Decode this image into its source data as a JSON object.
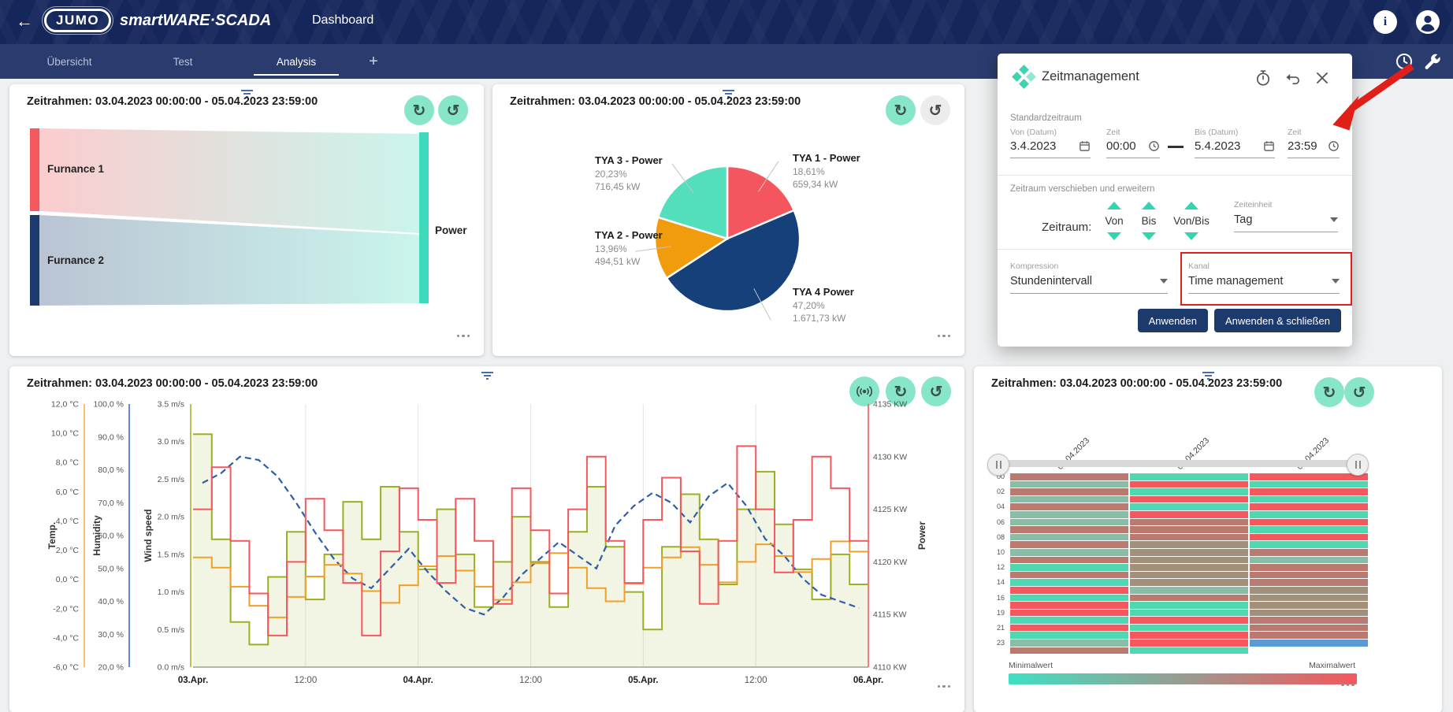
{
  "app_bar": {
    "logo_text": "JUMO",
    "brand": "smartWARE·SCADA",
    "page_title": "Dashboard",
    "accent_color": "#15265b"
  },
  "tab_bar": {
    "tabs": [
      {
        "label": "Übersicht",
        "active": false
      },
      {
        "label": "Test",
        "active": false
      },
      {
        "label": "Analysis",
        "active": true
      }
    ],
    "add_tab_label": "+"
  },
  "timeframe": "Zeitrahmen: 03.04.2023 00:00:00 - 05.04.2023 23:59:00",
  "dialog": {
    "title": "Zeitmanagement",
    "sections": {
      "standard": "Standardzeitraum",
      "shift": "Zeitraum verschieben und erweitern"
    },
    "fields": [
      {
        "label": "Von (Datum)",
        "value": "3.4.2023",
        "icon": "calendar"
      },
      {
        "label": "Zeit",
        "value": "00:00",
        "icon": "clock"
      },
      {
        "label": "Bis (Datum)",
        "value": "5.4.2023",
        "icon": "calendar"
      },
      {
        "label": "Zeit",
        "value": "23:59",
        "icon": "clock"
      }
    ],
    "zeitraum_label": "Zeitraum:",
    "steppers": [
      {
        "label": "Von"
      },
      {
        "label": "Bis"
      },
      {
        "label": "Von/Bis"
      }
    ],
    "zeiteinheit": {
      "label": "Zeiteinheit",
      "value": "Tag"
    },
    "kompression": {
      "label": "Kompression",
      "value": "Stundenintervall"
    },
    "kanal": {
      "label": "Kanal",
      "value": "Time management",
      "highlighted": true
    },
    "buttons": {
      "apply": "Anwenden",
      "apply_close": "Anwenden & schließen"
    },
    "highlight_color": "#e01f1f",
    "button_color": "#1c3a6c"
  },
  "chart_data": [
    {
      "type": "sankey",
      "nodes": [
        {
          "name": "Furnance 1",
          "color": "#f4575c"
        },
        {
          "name": "Furnance 2",
          "color": "#1d3a6e"
        },
        {
          "name": "Power",
          "color": "#3fd9bb"
        }
      ],
      "links": [
        {
          "source": "Furnance 1",
          "target": "Power"
        },
        {
          "source": "Furnance 2",
          "target": "Power"
        }
      ]
    },
    {
      "type": "pie",
      "start": "top",
      "direction": "clockwise",
      "slices": [
        {
          "label": "TYA 1 - Power",
          "pct_label": "18,61%",
          "value_label": "659,34 kW",
          "value_pct": 18.61,
          "color": "#f4555e"
        },
        {
          "label": "TYA 4 Power",
          "pct_label": "47,20%",
          "value_label": "1.671,73 kW",
          "value_pct": 47.2,
          "color": "#15407a"
        },
        {
          "label": "TYA 2 - Power",
          "pct_label": "13,96%",
          "value_label": "494,51 kW",
          "value_pct": 13.96,
          "color": "#f09c0d"
        },
        {
          "label": "TYA 3 - Power",
          "pct_label": "20,23%",
          "value_label": "716,45 kW",
          "value_pct": 20.23,
          "color": "#54dfbc"
        }
      ]
    },
    {
      "type": "line",
      "x_ticks": [
        {
          "label": "03.Apr.",
          "bold": true
        },
        {
          "label": "12:00",
          "bold": false
        },
        {
          "label": "04.Apr.",
          "bold": true
        },
        {
          "label": "12:00",
          "bold": false
        },
        {
          "label": "05.Apr.",
          "bold": true
        },
        {
          "label": "12:00",
          "bold": false
        },
        {
          "label": "06.Apr.",
          "bold": true
        }
      ],
      "axes": [
        {
          "id": "temp",
          "title": "Temp.",
          "color": "#f0b04a",
          "min": -6,
          "max": 12,
          "ticks": [
            "12,0 °C",
            "10,0 °C",
            "8,0 °C",
            "6,0 °C",
            "4,0 °C",
            "2,0 °C",
            "0,0 °C",
            "-2,0 °C",
            "-4,0 °C",
            "-6,0 °C"
          ]
        },
        {
          "id": "humidity",
          "title": "Humidity",
          "color": "#3a6fba",
          "min": 20,
          "max": 100,
          "ticks": [
            "100,0 %",
            "90,0 %",
            "80,0 %",
            "70,0 %",
            "60,0 %",
            "50,0 %",
            "40,0 %",
            "30,0 %",
            "20,0 %"
          ]
        },
        {
          "id": "wind",
          "title": "Wind speed",
          "color": "#a8b41f",
          "min": 0,
          "max": 3.5,
          "ticks": [
            "3.5 m/s",
            "3.0 m/s",
            "2.5 m/s",
            "2.0 m/s",
            "1.5 m/s",
            "1.0 m/s",
            "0.5 m/s",
            "0.0 m/s"
          ]
        },
        {
          "id": "power",
          "title": "Power",
          "color": "#f4575c",
          "min": 4110,
          "max": 4135,
          "side": "right",
          "ticks": [
            "4135 KW",
            "4130 KW",
            "4125 KW",
            "4120 KW",
            "4115 KW",
            "4110 KW"
          ]
        }
      ],
      "series": [
        {
          "name": "Wind speed",
          "axis": "wind",
          "color": "#9fae20",
          "style": "step-area",
          "fill": "rgba(176,185,85,0.16)",
          "values": [
            3.1,
            1.7,
            0.6,
            0.3,
            1.2,
            1.8,
            0.9,
            1.5,
            2.2,
            1.7,
            2.4,
            1.8,
            1.3,
            2.1,
            1.5,
            0.8,
            1.4,
            2.0,
            1.4,
            0.8,
            1.8,
            2.4,
            1.6,
            1.0,
            0.5,
            1.6,
            2.3,
            1.7,
            1.1,
            2.1,
            2.6,
            1.9,
            1.3,
            0.9,
            1.5,
            1.1
          ]
        },
        {
          "name": "Humidity",
          "axis": "humidity",
          "color": "#2e5ea8",
          "style": "dashed",
          "values": [
            76,
            79,
            84,
            83,
            78,
            70,
            61,
            53,
            47,
            44,
            50,
            56,
            49,
            43,
            38,
            36,
            41,
            48,
            53,
            58,
            54,
            50,
            63,
            69,
            73,
            70,
            64,
            72,
            76,
            69,
            59,
            54,
            47,
            42,
            40,
            38
          ]
        },
        {
          "name": "Temp",
          "axis": "temp",
          "color": "#f0a028",
          "style": "step",
          "values": [
            1.5,
            0.8,
            -0.5,
            -1.8,
            -2.6,
            -1.2,
            0.2,
            1.0,
            0.4,
            -0.8,
            -1.6,
            -0.4,
            0.9,
            1.6,
            0.6,
            -0.5,
            -1.4,
            -0.2,
            1.1,
            1.8,
            0.8,
            -0.6,
            -1.5,
            -0.3,
            0.8,
            1.5,
            2.2,
            1.0,
            -0.2,
            1.2,
            2.4,
            1.6,
            0.5,
            1.4,
            2.6,
            1.9
          ]
        },
        {
          "name": "Power",
          "axis": "power",
          "color": "#f4575c",
          "style": "step",
          "values": [
            4125,
            4129,
            4122,
            4117,
            4113,
            4120,
            4126,
            4123,
            4118,
            4113,
            4121,
            4127,
            4124,
            4118,
            4126,
            4122,
            4116,
            4127,
            4123,
            4117,
            4125,
            4130,
            4122,
            4118,
            4124,
            4128,
            4121,
            4116,
            4122,
            4131,
            4125,
            4119,
            4124,
            4130,
            4127,
            4122
          ]
        }
      ]
    },
    {
      "type": "heatmap",
      "columns": [
        "03.04.2023",
        "04.04.2023",
        "05.04.2023"
      ],
      "row_labels": [
        "00",
        "",
        "02",
        "",
        "04",
        "",
        "06",
        "",
        "08",
        "",
        "10",
        "",
        "12",
        "",
        "14",
        "",
        "16",
        "",
        "19",
        "",
        "21",
        "",
        "23",
        ""
      ],
      "palette": {
        "R": "#f4575c",
        "T": "#4fd8b0",
        "r": "#ba7a6f",
        "t": "#8abda6",
        "b": "#a3907a",
        "B": "#5b9bd5",
        "x": ""
      },
      "cells": [
        [
          "r",
          "T",
          "R"
        ],
        [
          "t",
          "R",
          "T"
        ],
        [
          "r",
          "T",
          "R"
        ],
        [
          "t",
          "R",
          "T"
        ],
        [
          "r",
          "T",
          "R"
        ],
        [
          "t",
          "R",
          "T"
        ],
        [
          "t",
          "r",
          "R"
        ],
        [
          "r",
          "r",
          "T"
        ],
        [
          "t",
          "r",
          "R"
        ],
        [
          "r",
          "b",
          "T"
        ],
        [
          "t",
          "b",
          "r"
        ],
        [
          "r",
          "b",
          "t"
        ],
        [
          "T",
          "b",
          "r"
        ],
        [
          "r",
          "b",
          "r"
        ],
        [
          "T",
          "b",
          "r"
        ],
        [
          "R",
          "t",
          "b"
        ],
        [
          "T",
          "r",
          "b"
        ],
        [
          "R",
          "T",
          "b"
        ],
        [
          "R",
          "T",
          "b"
        ],
        [
          "T",
          "R",
          "r"
        ],
        [
          "R",
          "T",
          "r"
        ],
        [
          "T",
          "R",
          "r"
        ],
        [
          "t",
          "R",
          "B"
        ],
        [
          "r",
          "T",
          "x"
        ]
      ],
      "legend": {
        "min_label": "Minimalwert",
        "max_label": "Maximalwert",
        "gradient": [
          "#3fe0c3",
          "#f4575c"
        ]
      }
    }
  ]
}
